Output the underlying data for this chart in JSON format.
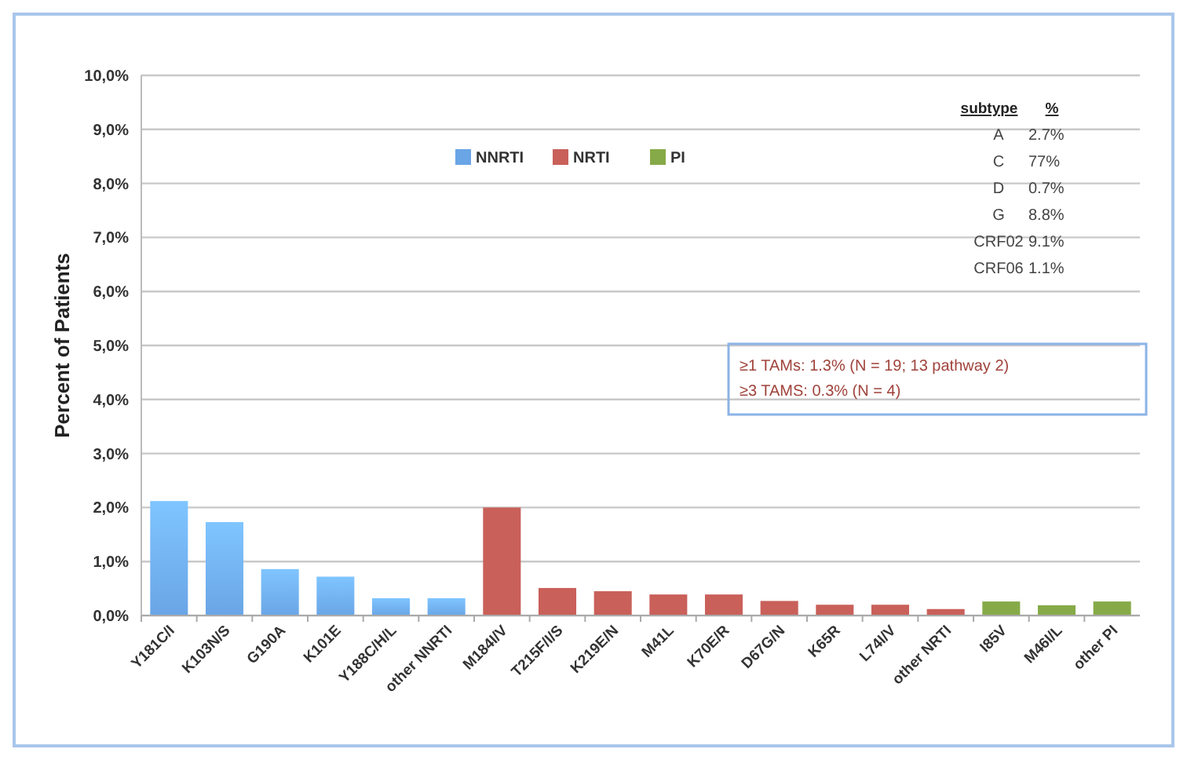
{
  "chart_data": {
    "type": "bar",
    "ylabel": "Percent of Patients",
    "categories": [
      "Y181C/I",
      "K103N/S",
      "G190A",
      "K101E",
      "Y188C/H/L",
      "other NNRTI",
      "M184I/V",
      "T215F/I/S",
      "K219E/N",
      "M41L",
      "K70E/R",
      "D67G/N",
      "K65R",
      "L74I/V",
      "other NRTI",
      "I85V",
      "M46I/L",
      "other PI"
    ],
    "series": [
      {
        "name": "NNRTI",
        "color": "#6aa5e6",
        "values": [
          2.12,
          1.73,
          0.86,
          0.72,
          0.32,
          0.32,
          null,
          null,
          null,
          null,
          null,
          null,
          null,
          null,
          null,
          null,
          null,
          null
        ]
      },
      {
        "name": "NRTI",
        "color": "#c9605a",
        "values": [
          null,
          null,
          null,
          null,
          null,
          null,
          2.0,
          0.51,
          0.45,
          0.39,
          0.39,
          0.27,
          0.2,
          0.2,
          0.12,
          null,
          null,
          null
        ]
      },
      {
        "name": "PI",
        "color": "#86aa48",
        "values": [
          null,
          null,
          null,
          null,
          null,
          null,
          null,
          null,
          null,
          null,
          null,
          null,
          null,
          null,
          null,
          0.26,
          0.19,
          0.26
        ]
      }
    ],
    "ylim": [
      0,
      10
    ],
    "yticks": [
      {
        "value": 0,
        "label": "0,0%"
      },
      {
        "value": 1,
        "label": "1,0%"
      },
      {
        "value": 2,
        "label": "2,0%"
      },
      {
        "value": 3,
        "label": "3,0%"
      },
      {
        "value": 4,
        "label": "4,0%"
      },
      {
        "value": 5,
        "label": "5,0%"
      },
      {
        "value": 6,
        "label": "6,0%"
      },
      {
        "value": 7,
        "label": "7,0%"
      },
      {
        "value": 8,
        "label": "8,0%"
      },
      {
        "value": 9,
        "label": "9,0%"
      },
      {
        "value": 10,
        "label": "10,0%"
      }
    ],
    "grid": "y",
    "legend": "top",
    "annotations": [
      "subtype",
      "%",
      "A",
      "2.7%",
      "C",
      "77%",
      "D",
      "0.7%",
      "G",
      "8.8%",
      "CRF02",
      "9.1%",
      "CRF06",
      "1.1%",
      "≥1 TAMs: 1.3% (N = 19; 13 pathway 2)",
      "≥3 TAMS: 0.3% (N = 4)"
    ]
  }
}
